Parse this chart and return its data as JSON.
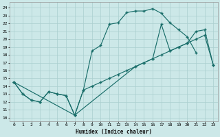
{
  "bg_color": "#cce8e8",
  "line_color": "#1a6e6a",
  "grid_color": "#aacfcf",
  "xlabel": "Humidex (Indice chaleur)",
  "xlim": [
    -0.5,
    23.5
  ],
  "ylim": [
    9.5,
    24.7
  ],
  "xticks": [
    0,
    1,
    2,
    3,
    4,
    5,
    6,
    7,
    8,
    9,
    10,
    11,
    12,
    13,
    14,
    15,
    16,
    17,
    18,
    19,
    20,
    21,
    22,
    23
  ],
  "yticks": [
    10,
    11,
    12,
    13,
    14,
    15,
    16,
    17,
    18,
    19,
    20,
    21,
    22,
    23,
    24
  ],
  "curve1_x": [
    0,
    1,
    2,
    3,
    4,
    5,
    6,
    7,
    8,
    9,
    10,
    11,
    12,
    13,
    14,
    15,
    16,
    17,
    18,
    19,
    20,
    21
  ],
  "curve1_y": [
    14.5,
    13.0,
    12.2,
    12.0,
    13.3,
    13.0,
    12.8,
    10.3,
    13.5,
    18.5,
    19.2,
    21.9,
    22.1,
    23.4,
    23.6,
    23.6,
    23.9,
    23.3,
    22.1,
    21.2,
    20.3,
    18.3
  ],
  "curve2_x": [
    0,
    1,
    2,
    3,
    4,
    5,
    6,
    7,
    8,
    9,
    10,
    11,
    12,
    13,
    14,
    15,
    16,
    17,
    18,
    19,
    20,
    21,
    22,
    23
  ],
  "curve2_y": [
    14.5,
    13.0,
    12.2,
    12.0,
    13.3,
    13.0,
    12.8,
    10.3,
    13.5,
    14.0,
    14.5,
    15.0,
    15.5,
    16.0,
    16.5,
    17.0,
    17.5,
    18.0,
    18.5,
    19.0,
    19.5,
    20.0,
    20.5,
    16.7
  ],
  "curve3_x": [
    0,
    7,
    14,
    15,
    16,
    17,
    18,
    19,
    20,
    21,
    22,
    23
  ],
  "curve3_y": [
    14.5,
    10.3,
    16.5,
    17.0,
    17.5,
    21.9,
    18.5,
    19.0,
    19.5,
    21.0,
    21.2,
    16.7
  ]
}
